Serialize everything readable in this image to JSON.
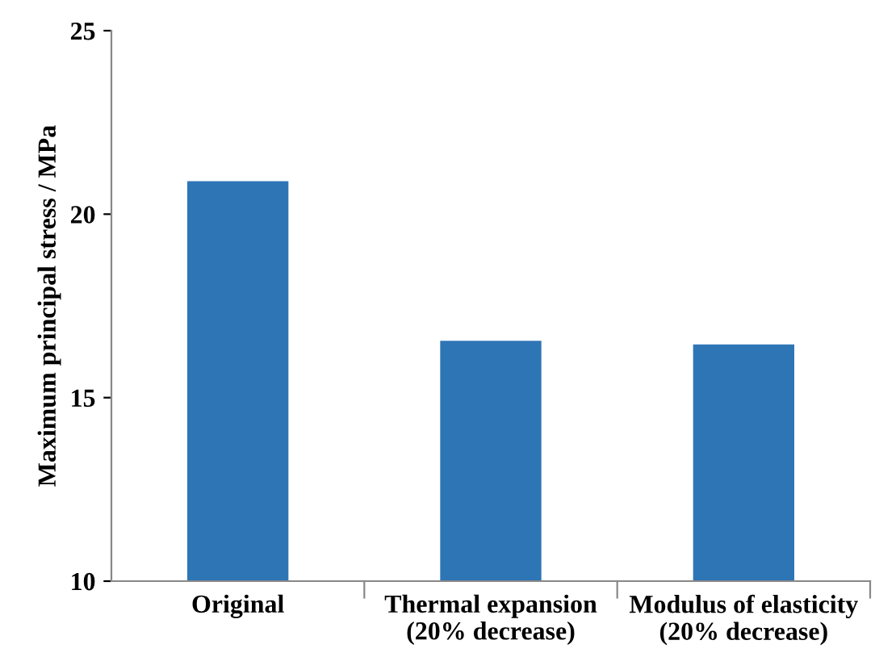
{
  "chart_data": {
    "type": "bar",
    "ylabel": "Maximum principal stress / MPa",
    "categories": [
      "Original",
      "Thermal expansion\n(20% decrease)",
      "Modulus of elasticity\n(20% decrease)"
    ],
    "values": [
      20.9,
      16.55,
      16.45
    ],
    "color": "#2e75b6",
    "ylim": [
      10,
      25
    ],
    "yticks": [
      10,
      15,
      20,
      25
    ],
    "grid": false,
    "legend": false
  }
}
